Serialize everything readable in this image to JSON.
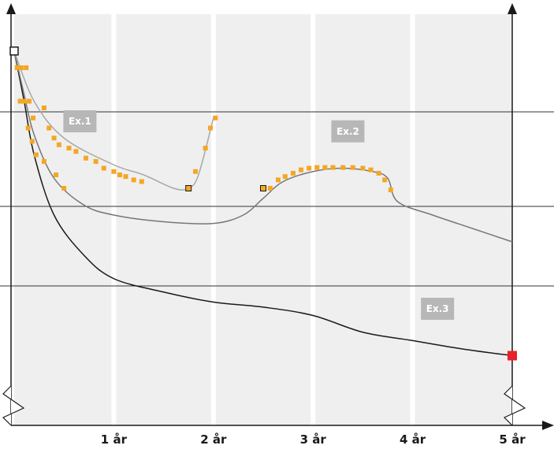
{
  "chart_data": {
    "type": "line",
    "x_ticks": [
      "1 år",
      "2 år",
      "3 år",
      "4 år",
      "5 år"
    ],
    "xlim": [
      0,
      5
    ],
    "grid_bands": "alternating light grey vertical bands, white separators",
    "reference_lines": [
      "upper",
      "middle",
      "lower"
    ],
    "start_marker": {
      "x": 0,
      "y": 0.93
    },
    "end_marker": {
      "x": 5,
      "y": 0.02,
      "color": "#e8212b"
    },
    "annotations": [
      {
        "text": "Ex.1",
        "x": 0.66,
        "y": 0.72
      },
      {
        "text": "Ex.2",
        "x": 3.35,
        "y": 0.69
      },
      {
        "text": "Ex.3",
        "x": 4.25,
        "y": 0.16
      }
    ],
    "series": [
      {
        "color": "#1a1a1a",
        "points": [
          [
            0,
            0.93
          ],
          [
            0.1,
            0.78
          ],
          [
            0.2,
            0.62
          ],
          [
            0.4,
            0.44
          ],
          [
            0.7,
            0.32
          ],
          [
            1.0,
            0.25
          ],
          [
            1.5,
            0.21
          ],
          [
            2.0,
            0.18
          ],
          [
            2.5,
            0.165
          ],
          [
            3.0,
            0.14
          ],
          [
            3.5,
            0.09
          ],
          [
            4.0,
            0.065
          ],
          [
            4.5,
            0.04
          ],
          [
            5.0,
            0.02
          ]
        ]
      },
      {
        "color": "#777777",
        "points": [
          [
            0,
            0.93
          ],
          [
            0.1,
            0.8
          ],
          [
            0.2,
            0.68
          ],
          [
            0.4,
            0.55
          ],
          [
            0.7,
            0.47
          ],
          [
            1.0,
            0.44
          ],
          [
            1.5,
            0.42
          ],
          [
            2.0,
            0.415
          ],
          [
            2.3,
            0.44
          ],
          [
            2.5,
            0.49
          ],
          [
            2.7,
            0.54
          ],
          [
            3.0,
            0.57
          ],
          [
            3.3,
            0.58
          ],
          [
            3.6,
            0.57
          ],
          [
            3.75,
            0.55
          ],
          [
            3.85,
            0.48
          ],
          [
            4.2,
            0.44
          ],
          [
            4.6,
            0.4
          ],
          [
            5.0,
            0.36
          ]
        ]
      },
      {
        "color": "#a8a8a8",
        "points": [
          [
            0,
            0.93
          ],
          [
            0.2,
            0.78
          ],
          [
            0.5,
            0.67
          ],
          [
            1.0,
            0.59
          ],
          [
            1.3,
            0.56
          ],
          [
            1.6,
            0.52
          ],
          [
            1.75,
            0.52
          ],
          [
            1.85,
            0.56
          ],
          [
            2.0,
            0.73
          ]
        ]
      }
    ],
    "sample_markers": {
      "color": "#f5a623",
      "points": [
        [
          0.03,
          0.88
        ],
        [
          0.07,
          0.88
        ],
        [
          0.12,
          0.88
        ],
        [
          0.06,
          0.78
        ],
        [
          0.1,
          0.78
        ],
        [
          0.15,
          0.78
        ],
        [
          0.19,
          0.73
        ],
        [
          0.3,
          0.76
        ],
        [
          0.35,
          0.7
        ],
        [
          0.4,
          0.67
        ],
        [
          0.45,
          0.65
        ],
        [
          0.55,
          0.64
        ],
        [
          0.62,
          0.63
        ],
        [
          0.72,
          0.61
        ],
        [
          0.82,
          0.6
        ],
        [
          0.9,
          0.58
        ],
        [
          1.0,
          0.57
        ],
        [
          1.06,
          0.56
        ],
        [
          1.12,
          0.555
        ],
        [
          1.2,
          0.545
        ],
        [
          1.28,
          0.54
        ],
        [
          1.82,
          0.57
        ],
        [
          1.92,
          0.64
        ],
        [
          1.97,
          0.7
        ],
        [
          2.02,
          0.73
        ],
        [
          0.14,
          0.7
        ],
        [
          0.18,
          0.66
        ],
        [
          0.22,
          0.62
        ],
        [
          0.3,
          0.6
        ],
        [
          0.42,
          0.56
        ],
        [
          0.5,
          0.52
        ],
        [
          2.57,
          0.52
        ],
        [
          2.65,
          0.545
        ],
        [
          2.72,
          0.555
        ],
        [
          2.8,
          0.565
        ],
        [
          2.88,
          0.575
        ],
        [
          2.96,
          0.58
        ],
        [
          3.04,
          0.582
        ],
        [
          3.12,
          0.582
        ],
        [
          3.2,
          0.582
        ],
        [
          3.3,
          0.582
        ],
        [
          3.4,
          0.582
        ],
        [
          3.5,
          0.58
        ],
        [
          3.58,
          0.575
        ],
        [
          3.66,
          0.565
        ],
        [
          3.72,
          0.545
        ],
        [
          3.78,
          0.515
        ]
      ],
      "highlighted": [
        [
          1.75,
          0.52
        ],
        [
          2.5,
          0.52
        ]
      ]
    }
  }
}
